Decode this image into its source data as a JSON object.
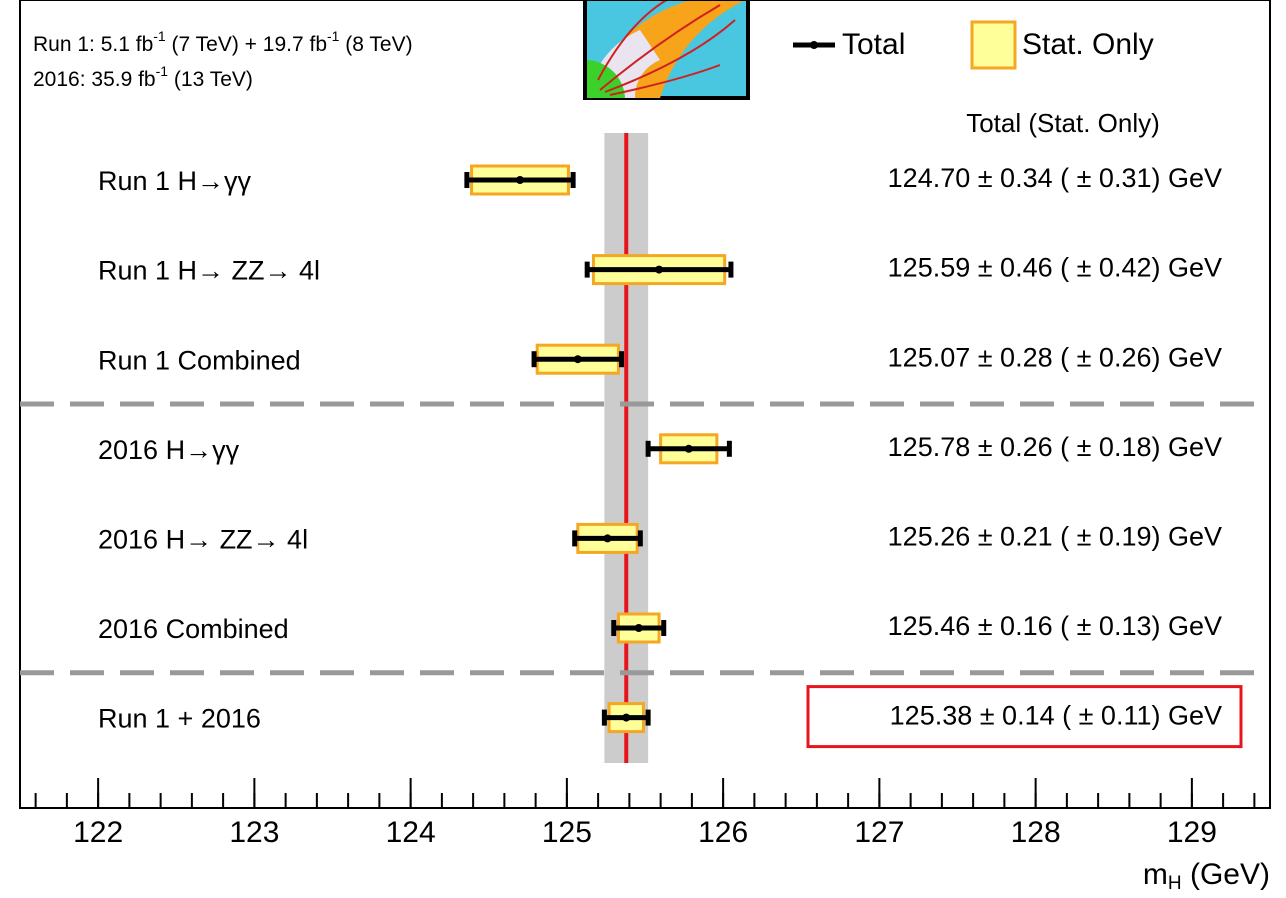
{
  "chart_data": {
    "type": "forest",
    "lumi_lines": [
      {
        "parts": [
          "Run 1: 5.1 fb",
          "-1",
          " (7 TeV) + 19.7 fb",
          "-1",
          " (8 TeV)"
        ]
      },
      {
        "parts": [
          "2016: 35.9 fb",
          "-1",
          " (13 TeV)"
        ]
      }
    ],
    "legend": {
      "total": "Total",
      "stat": "Stat. Only"
    },
    "column_header": "Total  (Stat. Only)",
    "categories": [
      "Run 1 H→γγ",
      "Run 1 H→ ZZ→ 4l",
      "Run 1 Combined",
      "2016 H→γγ",
      "2016 H→ ZZ→ 4l",
      "2016 Combined",
      "Run 1 + 2016"
    ],
    "values": [
      124.7,
      125.59,
      125.07,
      125.78,
      125.26,
      125.46,
      125.38
    ],
    "total_errors": [
      0.34,
      0.46,
      0.28,
      0.26,
      0.21,
      0.16,
      0.14
    ],
    "stat_errors": [
      0.31,
      0.42,
      0.26,
      0.18,
      0.19,
      0.13,
      0.11
    ],
    "result_labels": [
      "124.70 ± 0.34 ( ± 0.31) GeV",
      "125.59 ± 0.46 ( ± 0.42) GeV",
      "125.07 ± 0.28 ( ± 0.26) GeV",
      "125.78 ± 0.26 ( ± 0.18) GeV",
      "125.26 ± 0.21 ( ± 0.19) GeV",
      "125.46 ± 0.16 ( ± 0.13) GeV",
      "125.38 ± 0.14 ( ± 0.11) GeV"
    ],
    "separators_after": [
      2,
      5
    ],
    "highlight_row": 6,
    "stat_color": "#ffff99",
    "stat_edge": "#f5a623",
    "total_color": "#000000",
    "band_color": "#cccccc",
    "line_color": "#e8141b",
    "highlight_color": "#e8141b",
    "xlim": [
      121.5,
      129.5
    ],
    "xticks": [
      122,
      123,
      124,
      125,
      126,
      127,
      128,
      129
    ],
    "xlabel": {
      "main": "m",
      "sub": "H",
      "unit": " (GeV)"
    }
  }
}
